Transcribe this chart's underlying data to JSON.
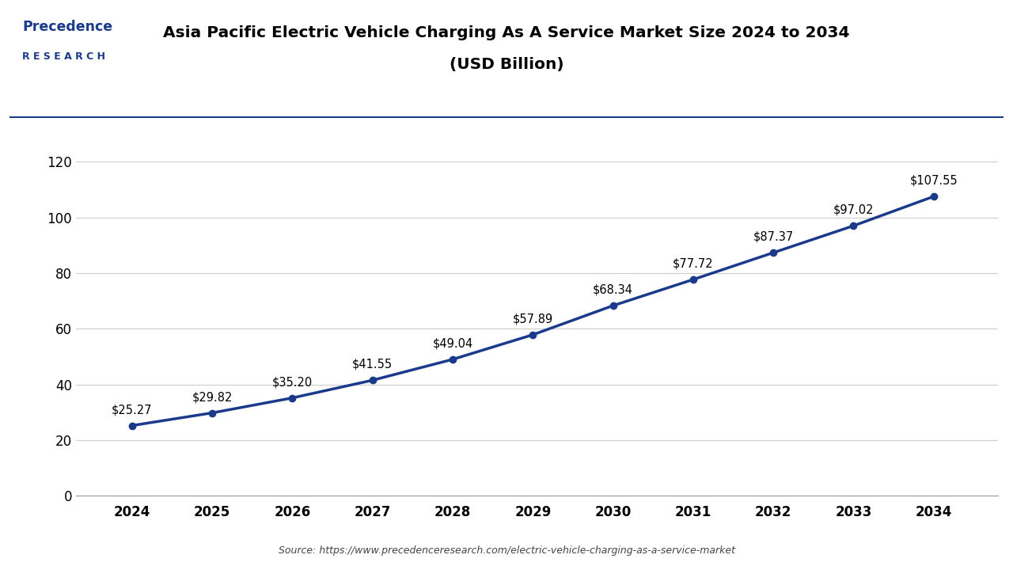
{
  "title_line1": "Asia Pacific Electric Vehicle Charging As A Service Market Size 2024 to 2034",
  "title_line2": "(USD Billion)",
  "years": [
    2024,
    2025,
    2026,
    2027,
    2028,
    2029,
    2030,
    2031,
    2032,
    2033,
    2034
  ],
  "values": [
    25.27,
    29.82,
    35.2,
    41.55,
    49.04,
    57.89,
    68.34,
    77.72,
    87.37,
    97.02,
    107.55
  ],
  "labels": [
    "$25.27",
    "$29.82",
    "$35.20",
    "$41.55",
    "$49.04",
    "$57.89",
    "$68.34",
    "$77.72",
    "$87.37",
    "$97.02",
    "$107.55"
  ],
  "line_color": "#1b3a8c",
  "marker_color": "#1b3a8c",
  "bg_color": "#ffffff",
  "plot_bg_color": "#ffffff",
  "grid_color": "#cccccc",
  "title_color": "#000000",
  "tick_color": "#000000",
  "label_color": "#000000",
  "source_text": "Source: https://www.precedenceresearch.com/electric-vehicle-charging-as-a-service-market",
  "ylim": [
    0,
    130
  ],
  "yticks": [
    0,
    20,
    40,
    60,
    80,
    100,
    120
  ],
  "title_fontsize": 14.5,
  "label_fontsize": 10.5,
  "tick_fontsize": 12,
  "source_fontsize": 9,
  "logo_color": "#1b3a8c",
  "separator_color": "#1b3a8c"
}
